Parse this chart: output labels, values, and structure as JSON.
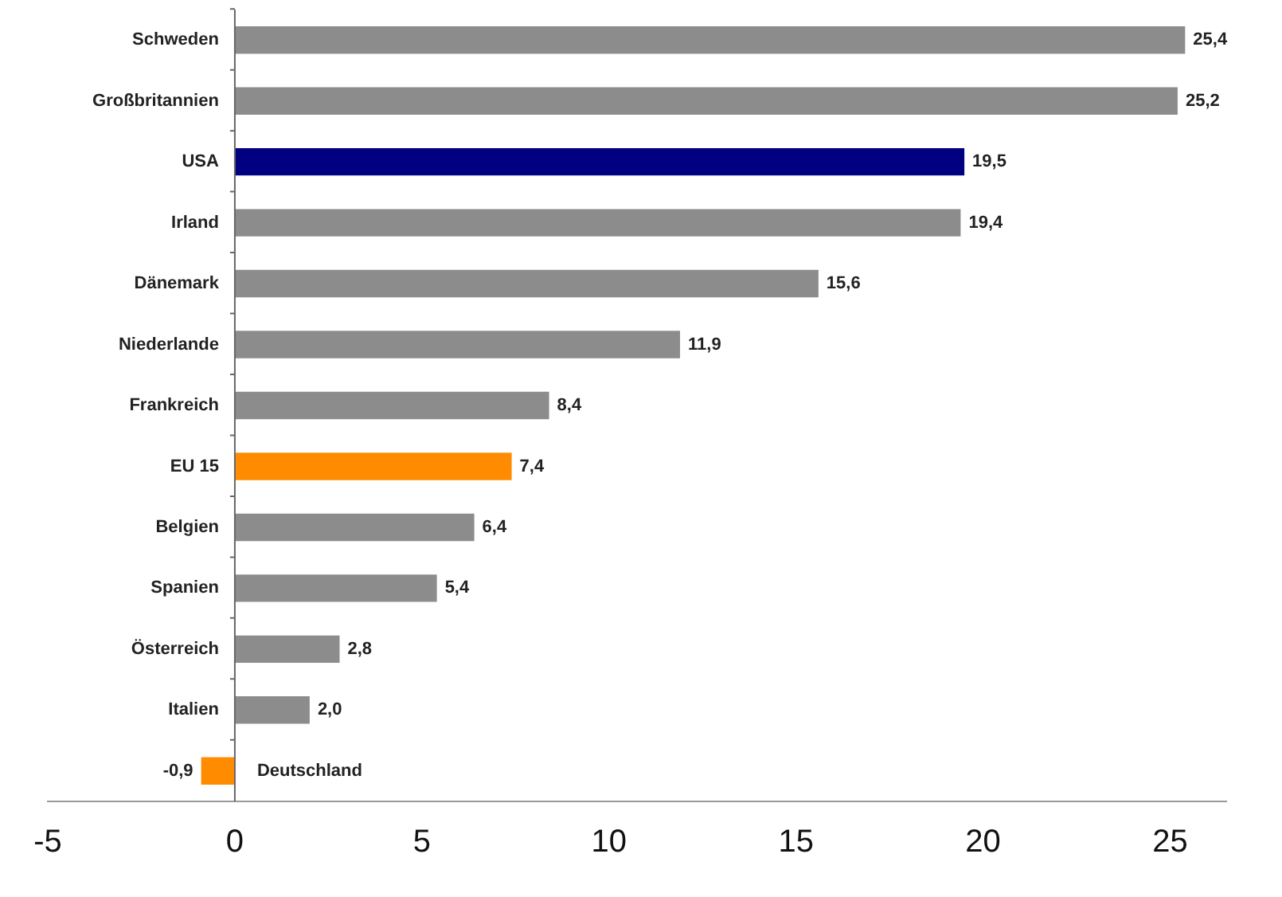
{
  "chart_data": {
    "type": "bar",
    "orientation": "horizontal",
    "categories": [
      "Schweden",
      "Großbritannien",
      "USA",
      "Irland",
      "Dänemark",
      "Niederlande",
      "Frankreich",
      "EU 15",
      "Belgien",
      "Spanien",
      "Österreich",
      "Italien",
      "Deutschland"
    ],
    "values": [
      25.4,
      25.2,
      19.5,
      19.4,
      15.6,
      11.9,
      8.4,
      7.4,
      6.4,
      5.4,
      2.8,
      2.0,
      -0.9
    ],
    "colors": [
      "#8c8c8c",
      "#8c8c8c",
      "#000080",
      "#8c8c8c",
      "#8c8c8c",
      "#8c8c8c",
      "#8c8c8c",
      "#ff8c00",
      "#8c8c8c",
      "#8c8c8c",
      "#8c8c8c",
      "#8c8c8c",
      "#ff8c00"
    ],
    "value_labels": [
      "25,4",
      "25,2",
      "19,5",
      "19,4",
      "15,6",
      "11,9",
      "8,4",
      "7,4",
      "6,4",
      "5,4",
      "2,8",
      "2,0",
      "-0,9"
    ],
    "xlim": [
      -5,
      26.5
    ],
    "xticks": [
      -5,
      0,
      5,
      10,
      15,
      20,
      25
    ],
    "grid": false,
    "legend": false
  }
}
